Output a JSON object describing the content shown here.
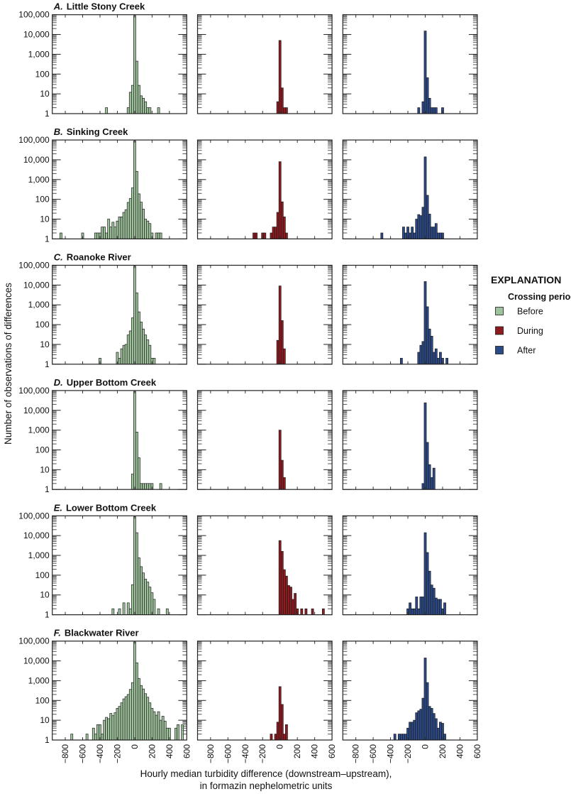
{
  "chart_data": {
    "type": "bar",
    "subtype": "histogram",
    "ylabel": "Number of observations of differences",
    "xlabel": {
      "line1": "Hourly median turbidity difference (downstream–upstream),",
      "line2": "in formazin nephelometric units"
    },
    "xlim": [
      -950,
      600
    ],
    "ylim": [
      1,
      100000
    ],
    "yscale": "log",
    "bin_width": 25,
    "grid": false,
    "x_ticks": [
      {
        "value": -800,
        "label": "−800"
      },
      {
        "value": -600,
        "label": "−600"
      },
      {
        "value": -400,
        "label": "−400"
      },
      {
        "value": -200,
        "label": "−200"
      },
      {
        "value": 0,
        "label": "0"
      },
      {
        "value": 200,
        "label": "200"
      },
      {
        "value": 400,
        "label": "400"
      },
      {
        "value": 600,
        "label": "600"
      }
    ],
    "y_ticks": [
      {
        "value": 1,
        "label": "1"
      },
      {
        "value": 10,
        "label": "10"
      },
      {
        "value": 100,
        "label": "100"
      },
      {
        "value": 1000,
        "label": "1,000"
      },
      {
        "value": 10000,
        "label": "10,000"
      },
      {
        "value": 100000,
        "label": "100,000"
      }
    ],
    "legend": {
      "title": "EXPLANATION",
      "subtitle": "Crossing period",
      "placement": "right",
      "entries": [
        {
          "key": "before",
          "name": "Before",
          "color": "#9fc39c"
        },
        {
          "key": "during",
          "name": "During",
          "color": "#8e1b1f"
        },
        {
          "key": "after",
          "name": "After",
          "color": "#2d4a88"
        }
      ]
    },
    "panels": [
      {
        "letter": "A.",
        "title": "Little Stony Creek",
        "series": {
          "before": {
            "x": [
              -325,
              -75,
              -50,
              -25,
              0,
              25,
              50,
              75,
              100,
              125,
              150,
              175,
              275
            ],
            "counts": [
              2,
              2,
              12,
              27,
              90000,
              450,
              27,
              8,
              6,
              4,
              2,
              2,
              2
            ]
          },
          "during": {
            "x": [
              -25,
              0,
              25,
              50,
              75
            ],
            "counts": [
              4,
              5000,
              20,
              2,
              2
            ]
          },
          "after": {
            "x": [
              -75,
              -25,
              0,
              25,
              50,
              75,
              100,
              125,
              200
            ],
            "counts": [
              2,
              4,
              15000,
              65,
              6,
              2,
              2,
              2,
              2
            ]
          }
        }
      },
      {
        "letter": "B.",
        "title": "Sinking Creek",
        "series": {
          "before": {
            "x": [
              -850,
              -600,
              -450,
              -425,
              -400,
              -375,
              -350,
              -325,
              -300,
              -275,
              -250,
              -225,
              -200,
              -175,
              -150,
              -125,
              -100,
              -75,
              -50,
              -25,
              0,
              25,
              50,
              75,
              100,
              125,
              150,
              175,
              200,
              250,
              275,
              300
            ],
            "counts": [
              2,
              2,
              2,
              2,
              2,
              4,
              4,
              2,
              10,
              4,
              7,
              4,
              8,
              13,
              13,
              22,
              30,
              70,
              110,
              380,
              90000,
              2600,
              190,
              72,
              32,
              10,
              8,
              6,
              2,
              2,
              2,
              2
            ]
          },
          "during": {
            "x": [
              -300,
              -275,
              -200,
              -175,
              -100,
              -75,
              -50,
              -25,
              0,
              25,
              50,
              75
            ],
            "counts": [
              2,
              2,
              2,
              2,
              2,
              4,
              4,
              22,
              8000,
              75,
              13,
              2
            ]
          },
          "after": {
            "x": [
              -500,
              -250,
              -225,
              -200,
              -175,
              -150,
              -125,
              -100,
              -75,
              -50,
              -25,
              0,
              25,
              50,
              75,
              100,
              125,
              150,
              175,
              200
            ],
            "counts": [
              2,
              4,
              2,
              4,
              2,
              4,
              2,
              10,
              17,
              15,
              40,
              14000,
              160,
              18,
              4,
              4,
              6,
              2,
              2,
              2
            ]
          }
        }
      },
      {
        "letter": "C.",
        "title": "Roanoke River",
        "series": {
          "before": {
            "x": [
              -400,
              -200,
              -175,
              -150,
              -125,
              -100,
              -75,
              -50,
              -25,
              0,
              25,
              50,
              75,
              100,
              125,
              150,
              175,
              200,
              225
            ],
            "counts": [
              2,
              4,
              2,
              6,
              9,
              10,
              30,
              48,
              220,
              90000,
              4000,
              440,
              135,
              60,
              30,
              17,
              9,
              2,
              2
            ]
          },
          "during": {
            "x": [
              -25,
              0,
              25,
              50
            ],
            "counts": [
              16,
              9000,
              160,
              6
            ]
          },
          "after": {
            "x": [
              -275,
              -75,
              -50,
              -25,
              0,
              25,
              50,
              75,
              100,
              125,
              150,
              175,
              200,
              250
            ],
            "counts": [
              2,
              4,
              9,
              14,
              15000,
              800,
              60,
              26,
              4,
              6,
              2,
              4,
              2,
              2
            ]
          }
        }
      },
      {
        "letter": "D.",
        "title": "Upper Bottom Creek",
        "series": {
          "before": {
            "x": [
              -25,
              0,
              25,
              50,
              75,
              100,
              125,
              150,
              175,
              200,
              300
            ],
            "counts": [
              6,
              90000,
              800,
              40,
              2,
              2,
              2,
              2,
              2,
              2,
              2
            ]
          },
          "during": {
            "x": [
              0,
              25,
              50
            ],
            "counts": [
              1000,
              30,
              4
            ]
          },
          "after": {
            "x": [
              -25,
              0,
              25,
              50,
              75,
              100
            ],
            "counts": [
              2,
              24000,
              240,
              18,
              4,
              12
            ]
          }
        }
      },
      {
        "letter": "E.",
        "title": "Lower Bottom Creek",
        "series": {
          "before": {
            "x": [
              -250,
              -175,
              -125,
              -75,
              -50,
              -25,
              0,
              25,
              50,
              75,
              100,
              125,
              150,
              175,
              200,
              225,
              275,
              375
            ],
            "counts": [
              2,
              2,
              4,
              4,
              2,
              33,
              90000,
              14000,
              750,
              270,
              130,
              63,
              45,
              25,
              13,
              6,
              2,
              2
            ]
          },
          "during": {
            "x": [
              0,
              25,
              50,
              75,
              100,
              125,
              150,
              175,
              200,
              250,
              300,
              375,
              500
            ],
            "counts": [
              5600,
              1600,
              190,
              90,
              30,
              25,
              6,
              12,
              2,
              2,
              2,
              2,
              2
            ]
          },
          "after": {
            "x": [
              -200,
              -175,
              -150,
              -125,
              -100,
              -75,
              -50,
              -25,
              0,
              25,
              50,
              75,
              100,
              125,
              150,
              175,
              200,
              225
            ],
            "counts": [
              2,
              4,
              2,
              2,
              8,
              2,
              8,
              8,
              14000,
              1400,
              160,
              32,
              22,
              7,
              6,
              6,
              2,
              4
            ]
          }
        }
      },
      {
        "letter": "F.",
        "title": "Blackwater River",
        "series": {
          "before": {
            "x": [
              -725,
              -550,
              -475,
              -450,
              -425,
              -400,
              -375,
              -350,
              -325,
              -300,
              -275,
              -250,
              -225,
              -200,
              -175,
              -150,
              -125,
              -100,
              -75,
              -50,
              -25,
              0,
              25,
              50,
              75,
              100,
              125,
              150,
              175,
              200,
              225,
              250,
              275,
              300,
              325,
              350,
              375,
              400,
              475,
              500,
              550
            ],
            "counts": [
              2,
              2,
              4,
              2,
              6,
              6,
              2,
              10,
              14,
              12,
              22,
              17,
              24,
              40,
              50,
              76,
              120,
              155,
              200,
              360,
              800,
              90000,
              8000,
              1300,
              570,
              380,
              220,
              145,
              76,
              40,
              27,
              18,
              27,
              10,
              16,
              9,
              4,
              4,
              4,
              6,
              6
            ]
          },
          "during": {
            "x": [
              -100,
              -50,
              -25,
              0,
              25,
              50,
              75
            ],
            "counts": [
              2,
              2,
              8,
              500,
              63,
              2,
              6
            ]
          },
          "after": {
            "x": [
              -350,
              -300,
              -275,
              -250,
              -225,
              -200,
              -175,
              -150,
              -125,
              -100,
              -75,
              -50,
              -25,
              0,
              25,
              50,
              75,
              100,
              125,
              150,
              175,
              200,
              225
            ],
            "counts": [
              2,
              2,
              2,
              2,
              2,
              4,
              8,
              8,
              10,
              24,
              30,
              36,
              130,
              14000,
              800,
              50,
              40,
              22,
              12,
              4,
              8,
              7,
              2
            ]
          }
        }
      }
    ]
  }
}
